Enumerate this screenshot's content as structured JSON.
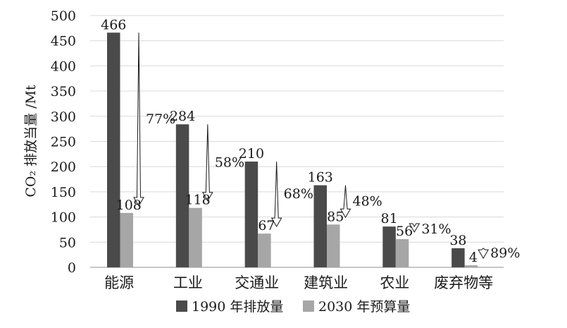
{
  "chart_data": {
    "type": "bar",
    "ylabel": "CO₂ 排放当量 /Mt",
    "ylim": [
      0,
      500
    ],
    "yticks": [
      0,
      50,
      100,
      150,
      200,
      250,
      300,
      350,
      400,
      450,
      500
    ],
    "grid": "horizontal",
    "legend_position": "bottom",
    "categories": [
      "能源",
      "工业",
      "交通业",
      "建筑业",
      "农业",
      "废弃物等"
    ],
    "series": [
      {
        "name": "1990 年排放量",
        "color": "#4a4a4a",
        "values": [
          466,
          284,
          210,
          163,
          81,
          38
        ]
      },
      {
        "name": "2030 年预算量",
        "color": "#a6a6a6",
        "values": [
          108,
          118,
          67,
          85,
          56,
          4
        ]
      }
    ],
    "reductions": [
      "77%",
      "58%",
      "68%",
      "48%",
      "31%",
      "89%"
    ]
  }
}
